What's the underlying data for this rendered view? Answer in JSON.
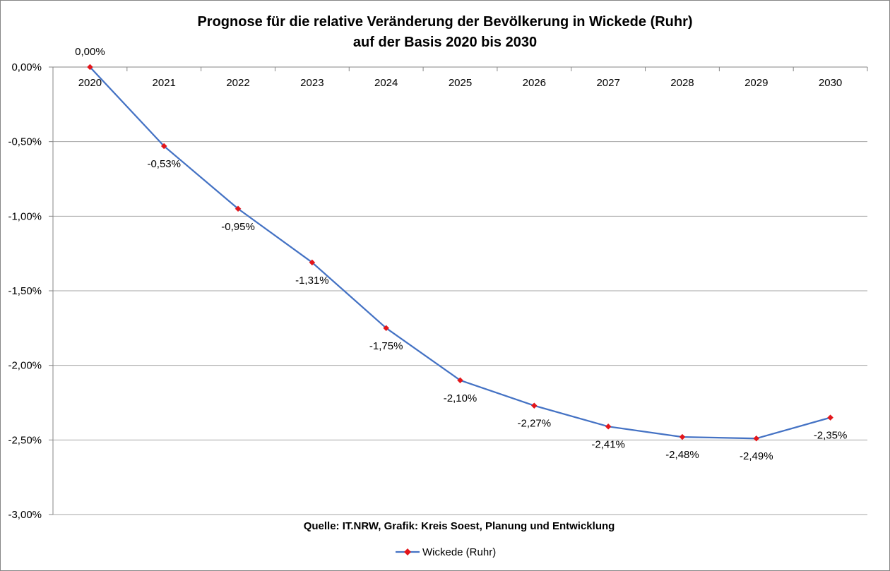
{
  "chart_data": {
    "type": "line",
    "title": "Prognose für die relative Veränderung der Bevölkerung in Wickede (Ruhr)",
    "subtitle": "auf der Basis 2020 bis 2030",
    "categories": [
      "2020",
      "2021",
      "2022",
      "2023",
      "2024",
      "2025",
      "2026",
      "2027",
      "2028",
      "2029",
      "2030"
    ],
    "series": [
      {
        "name": "Wickede (Ruhr)",
        "values": [
          0.0,
          -0.53,
          -0.95,
          -1.31,
          -1.75,
          -2.1,
          -2.27,
          -2.41,
          -2.48,
          -2.49,
          -2.35
        ],
        "labels": [
          "0,00%",
          "-0,53%",
          "-0,95%",
          "-1,31%",
          "-1,75%",
          "-2,10%",
          "-2,27%",
          "-2,41%",
          "-2,48%",
          "-2,49%",
          "-2,35%"
        ],
        "line_color": "#4472C4",
        "marker_color": "#E3161B"
      }
    ],
    "ylim": [
      -3.0,
      0.0
    ],
    "yticks": [
      0.0,
      -0.5,
      -1.0,
      -1.5,
      -2.0,
      -2.5,
      -3.0
    ],
    "ytick_labels": [
      "0,00%",
      "-0,50%",
      "-1,00%",
      "-1,50%",
      "-2,00%",
      "-2,50%",
      "-3,00%"
    ],
    "grid": true,
    "legend_position": "bottom",
    "source": "Quelle: IT.NRW, Grafik: Kreis Soest, Planung und Entwicklung"
  }
}
